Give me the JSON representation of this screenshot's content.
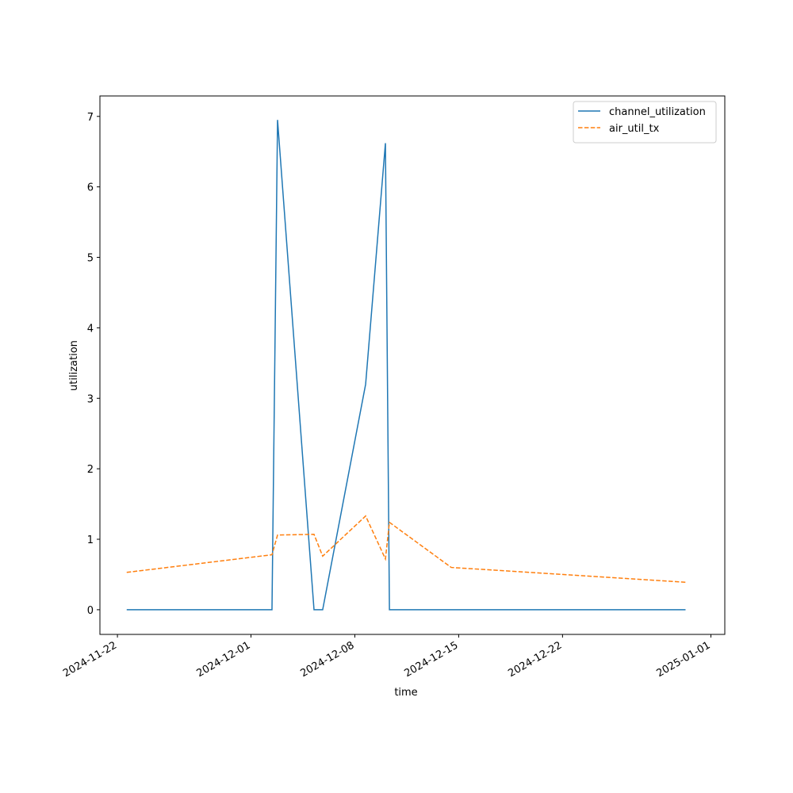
{
  "chart_data": {
    "type": "line",
    "x_label": "time",
    "y_label": "utilization",
    "x": [
      "2024-11-22 15:00",
      "2024-12-02 10:00",
      "2024-12-02 19:00",
      "2024-12-05 06:00",
      "2024-12-05 20:00",
      "2024-12-08 17:30",
      "2024-12-10 01:30",
      "2024-12-10 08:00",
      "2024-12-14 12:00",
      "2024-12-30 07:00"
    ],
    "series": [
      {
        "name": "channel_utilization",
        "color": "#1f77b4",
        "linestyle": "solid",
        "values": [
          0,
          0,
          6.95,
          0,
          0,
          3.2,
          6.62,
          0,
          0,
          0
        ]
      },
      {
        "name": "air_util_tx",
        "color": "#ff7f0e",
        "linestyle": "dashed",
        "values": [
          0.53,
          0.78,
          1.06,
          1.07,
          0.76,
          1.33,
          0.72,
          1.24,
          0.6,
          0.39
        ]
      }
    ],
    "xlim": [
      "2024-11-20 19:40",
      "2025-01-01 22:30"
    ],
    "xticks": [
      "2024-11-22",
      "2024-12-01",
      "2024-12-08",
      "2024-12-15",
      "2024-12-22",
      "2025-01-01"
    ],
    "ylim": [
      -0.35,
      7.29
    ],
    "yticks": [
      0,
      1,
      2,
      3,
      4,
      5,
      6,
      7
    ],
    "grid": false,
    "legend": "upper right"
  }
}
